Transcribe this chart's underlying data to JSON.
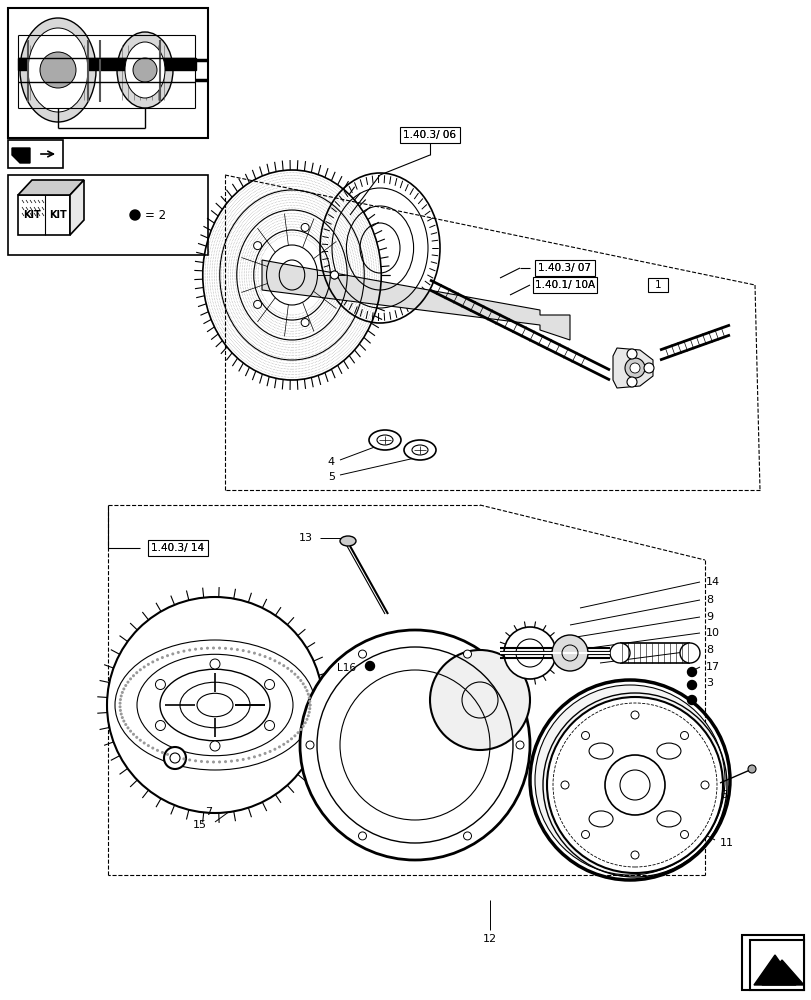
{
  "bg": "#ffffff",
  "lc": "#000000",
  "labels": {
    "ref1": "1.40.3/ 06",
    "ref2": "1.40.3/ 07",
    "ref3": "1.40.1/ 10A",
    "ref4": "1.40.3/ 14",
    "kit_eq": "= 2"
  },
  "fig_width": 8.12,
  "fig_height": 10.0,
  "dpi": 100
}
